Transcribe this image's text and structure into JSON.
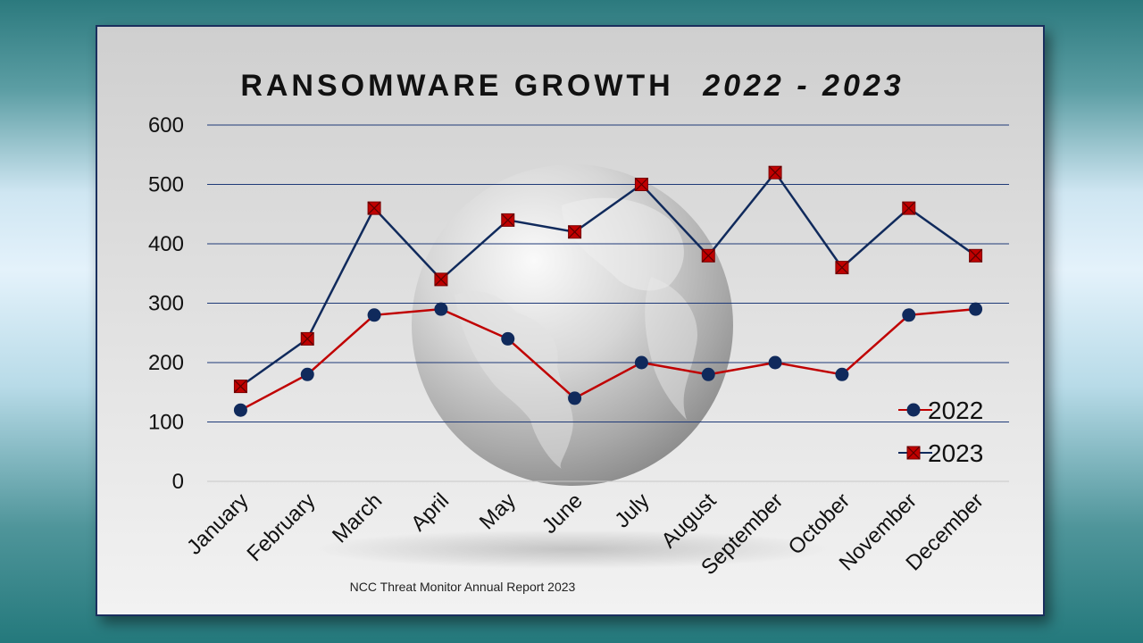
{
  "colors": {
    "series_2022_line": "#c00000",
    "series_2022_marker": "#102a5c",
    "series_2023_line": "#102a5c",
    "series_2023_marker": "#c00000",
    "gridline": "#1f3a78"
  },
  "chart_data": {
    "type": "line",
    "title_main": "RANSOMWARE GROWTH",
    "title_years": "2022 - 2023",
    "categories": [
      "January",
      "February",
      "March",
      "April",
      "May",
      "June",
      "July",
      "August",
      "September",
      "October",
      "November",
      "December"
    ],
    "series": [
      {
        "name": "2022",
        "marker": "circle",
        "values": [
          120,
          180,
          280,
          290,
          240,
          140,
          200,
          180,
          200,
          180,
          280,
          290
        ]
      },
      {
        "name": "2023",
        "marker": "square-x",
        "values": [
          160,
          240,
          460,
          340,
          440,
          420,
          500,
          380,
          520,
          360,
          460,
          380
        ]
      }
    ],
    "ylim": [
      0,
      600
    ],
    "yticks": [
      "0",
      "100",
      "200",
      "300",
      "400",
      "500",
      "600"
    ],
    "grid": true,
    "legend_position": "right",
    "source": "NCC Threat Monitor Annual Report 2023"
  }
}
